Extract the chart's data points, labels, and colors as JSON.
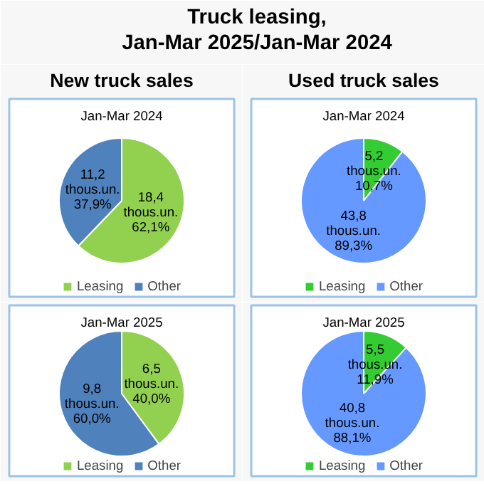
{
  "chart_data": [
    {
      "type": "pie",
      "title": "Jan-Mar 2024",
      "annotations": [
        "Truck leasing,\nJan-Mar 2025/Jan-Mar 2024",
        "New truck sales"
      ],
      "categories": [
        "Leasing",
        "Other"
      ],
      "values": [
        18.4,
        11.2
      ],
      "colors": [
        "#92d050",
        "#4f81bd"
      ],
      "value_labels": [
        "18,4\nthous.un.\n62,1%",
        "11,2\nthous.un.\n37,9%"
      ],
      "legend": "bottom"
    },
    {
      "type": "pie",
      "title": "Jan-Mar 2024",
      "annotations": [
        "Used truck sales"
      ],
      "categories": [
        "Leasing",
        "Other"
      ],
      "values": [
        5.2,
        43.8
      ],
      "colors": [
        "#33cc33",
        "#6699ff"
      ],
      "value_labels": [
        "5,2\nthous.un.\n10,7%",
        "43,8\nthous.un.\n89,3%"
      ],
      "legend": "bottom"
    },
    {
      "type": "pie",
      "title": "Jan-Mar 2025",
      "categories": [
        "Leasing",
        "Other"
      ],
      "values": [
        6.5,
        9.8
      ],
      "colors": [
        "#92d050",
        "#4f81bd"
      ],
      "value_labels": [
        "6,5\nthous.un.\n40,0%",
        "9,8\nthous.un.\n60,0%"
      ],
      "legend": "bottom"
    },
    {
      "type": "pie",
      "title": "Jan-Mar 2025",
      "categories": [
        "Leasing",
        "Other"
      ],
      "values": [
        5.5,
        40.8
      ],
      "colors": [
        "#33cc33",
        "#6699ff"
      ],
      "value_labels": [
        "5,5\nthous.un.\n11,9%",
        "40,8\nthous.un.\n88,1%"
      ],
      "legend": "bottom"
    }
  ]
}
